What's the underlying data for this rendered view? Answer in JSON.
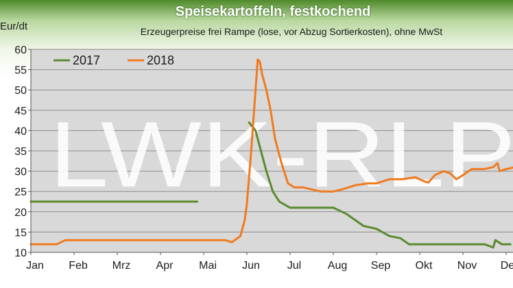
{
  "chart_data": {
    "type": "line",
    "title": "Speisekartoffeln, festkochend",
    "subtitle": "Erzeugerpreise frei Rampe (lose, vor Abzug Sortierkosten), ohne MwSt",
    "ylabel": "Eur/dt",
    "xlabel": "",
    "ylim": [
      10,
      60
    ],
    "yticks": [
      10,
      15,
      20,
      25,
      30,
      35,
      40,
      45,
      50,
      55,
      60
    ],
    "months": [
      "Jan",
      "Feb",
      "Mrz",
      "Apr",
      "Mai",
      "Jun",
      "Jul",
      "Aug",
      "Sep",
      "Okt",
      "Nov",
      "Dez"
    ],
    "x_unit": "months since start of year",
    "grid": true,
    "legend_position": "top-left",
    "watermark": "LWK-RLP",
    "series": [
      {
        "name": "2017",
        "color": "#5a8a2e",
        "segments": [
          [
            [
              0,
              22.5
            ],
            [
              3.85,
              22.5
            ]
          ],
          [
            [
              5.05,
              42
            ],
            [
              5.2,
              40
            ],
            [
              5.3,
              36
            ],
            [
              5.45,
              30
            ],
            [
              5.6,
              25
            ],
            [
              5.75,
              22.5
            ],
            [
              6.0,
              21
            ],
            [
              6.5,
              21
            ],
            [
              7.0,
              21
            ],
            [
              7.3,
              19.5
            ],
            [
              7.5,
              18
            ],
            [
              7.7,
              16.5
            ],
            [
              8.0,
              15.8
            ],
            [
              8.3,
              14
            ],
            [
              8.55,
              13.5
            ],
            [
              8.75,
              12
            ],
            [
              9.0,
              12
            ],
            [
              9.5,
              12
            ],
            [
              10.0,
              12
            ],
            [
              10.5,
              12
            ],
            [
              10.7,
              11.2
            ],
            [
              10.75,
              13
            ],
            [
              10.9,
              12
            ],
            [
              11.1,
              12
            ]
          ]
        ]
      },
      {
        "name": "2018",
        "color": "#f07a1e",
        "segments": [
          [
            [
              0,
              12
            ],
            [
              0.6,
              12
            ],
            [
              0.8,
              13
            ],
            [
              1.5,
              13
            ],
            [
              2.0,
              13
            ],
            [
              3.0,
              13
            ],
            [
              4.0,
              13
            ],
            [
              4.5,
              13
            ],
            [
              4.65,
              12.5
            ],
            [
              4.85,
              14
            ],
            [
              4.95,
              18
            ],
            [
              5.0,
              22
            ],
            [
              5.1,
              35
            ],
            [
              5.2,
              50
            ],
            [
              5.25,
              57.5
            ],
            [
              5.3,
              57
            ],
            [
              5.35,
              54
            ],
            [
              5.45,
              50
            ],
            [
              5.55,
              45
            ],
            [
              5.65,
              38
            ],
            [
              5.8,
              32
            ],
            [
              5.95,
              27
            ],
            [
              6.1,
              26
            ],
            [
              6.3,
              26
            ],
            [
              6.5,
              25.5
            ],
            [
              6.7,
              25
            ],
            [
              7.0,
              25
            ],
            [
              7.2,
              25.5
            ],
            [
              7.5,
              26.5
            ],
            [
              7.8,
              27
            ],
            [
              8.0,
              27
            ],
            [
              8.3,
              28
            ],
            [
              8.6,
              28
            ],
            [
              8.9,
              28.5
            ],
            [
              9.1,
              27.5
            ],
            [
              9.2,
              27.2
            ],
            [
              9.35,
              29
            ],
            [
              9.55,
              30
            ],
            [
              9.7,
              29.5
            ],
            [
              9.85,
              28
            ],
            [
              10.0,
              29
            ],
            [
              10.2,
              30.5
            ],
            [
              10.5,
              30.5
            ],
            [
              10.7,
              31
            ],
            [
              10.8,
              32
            ],
            [
              10.85,
              30
            ],
            [
              11.0,
              30.5
            ],
            [
              11.2,
              31
            ]
          ]
        ]
      }
    ]
  }
}
